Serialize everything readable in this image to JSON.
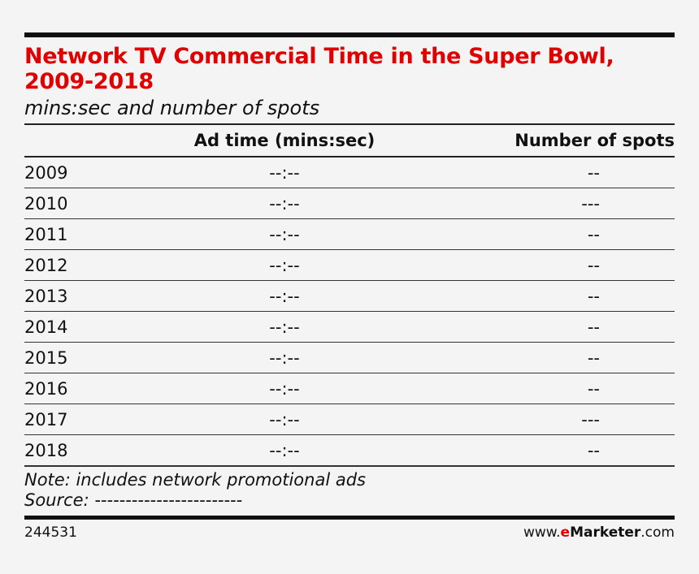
{
  "chart_data": {
    "type": "table",
    "title": "Network TV Commercial Time in the Super Bowl, 2009-2018",
    "subtitle": "mins:sec and number of spots",
    "columns": [
      "",
      "Ad time (mins:sec)",
      "Number of spots"
    ],
    "rows": [
      {
        "year": "2009",
        "ad_time": "--:--",
        "spots": "--"
      },
      {
        "year": "2010",
        "ad_time": "--:--",
        "spots": "---"
      },
      {
        "year": "2011",
        "ad_time": "--:--",
        "spots": "--"
      },
      {
        "year": "2012",
        "ad_time": "--:--",
        "spots": "--"
      },
      {
        "year": "2013",
        "ad_time": "--:--",
        "spots": "--"
      },
      {
        "year": "2014",
        "ad_time": "--:--",
        "spots": "--"
      },
      {
        "year": "2015",
        "ad_time": "--:--",
        "spots": "--"
      },
      {
        "year": "2016",
        "ad_time": "--:--",
        "spots": "--"
      },
      {
        "year": "2017",
        "ad_time": "--:--",
        "spots": "---"
      },
      {
        "year": "2018",
        "ad_time": "--:--",
        "spots": "--"
      }
    ],
    "note": "Note: includes network promotional ads",
    "source": "Source: ------------------------"
  },
  "footer": {
    "chart_id": "244531",
    "brand_prefix": "www.",
    "brand_e": "e",
    "brand_name": "Marketer",
    "brand_suffix": ".com"
  },
  "colors": {
    "title": "#e00000",
    "rule": "#111111"
  }
}
